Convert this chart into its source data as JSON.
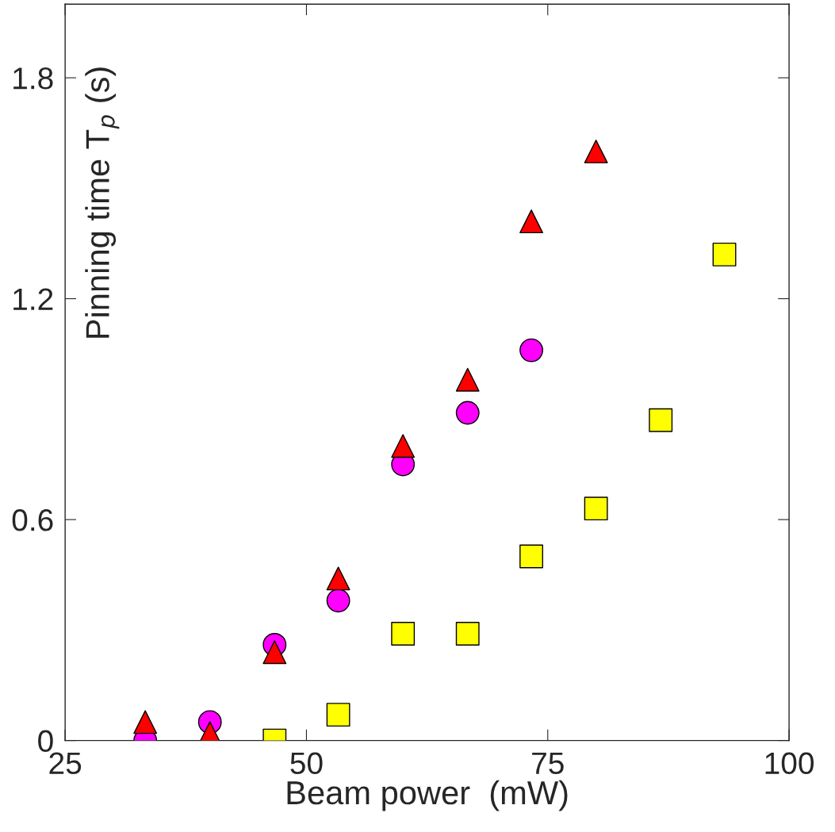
{
  "chart_data": {
    "type": "scatter",
    "xlabel": "Beam power  (mW)",
    "ylabel": "Pinning time T$_{p}$ (s)",
    "xlim": [
      25,
      100
    ],
    "xticks": [
      25,
      50,
      75,
      100
    ],
    "ylim": [
      0,
      2.0
    ],
    "yticks": [
      0,
      0.6,
      1.2,
      1.8
    ],
    "grid": false,
    "legend": false,
    "series": [
      {
        "color": "#ff0000",
        "marker": "triangle",
        "x": [
          33.3,
          40,
          46.7,
          53.3,
          60,
          66.7,
          73.3,
          80
        ],
        "values": [
          0.05,
          0.02,
          0.24,
          0.44,
          0.8,
          0.98,
          1.41,
          1.6
        ]
      },
      {
        "color": "#ff00ff",
        "marker": "circle",
        "x": [
          33.3,
          40,
          46.7,
          53.3,
          60,
          66.7,
          73.3
        ],
        "values": [
          0.0,
          0.05,
          0.26,
          0.38,
          0.75,
          0.89,
          1.06
        ]
      },
      {
        "color": "#ffff00",
        "marker": "square",
        "x": [
          46.7,
          53.3,
          60,
          66.7,
          73.3,
          80,
          86.7,
          93.3
        ],
        "values": [
          0.0,
          0.07,
          0.29,
          0.29,
          0.5,
          0.63,
          0.87,
          1.32
        ]
      }
    ]
  }
}
